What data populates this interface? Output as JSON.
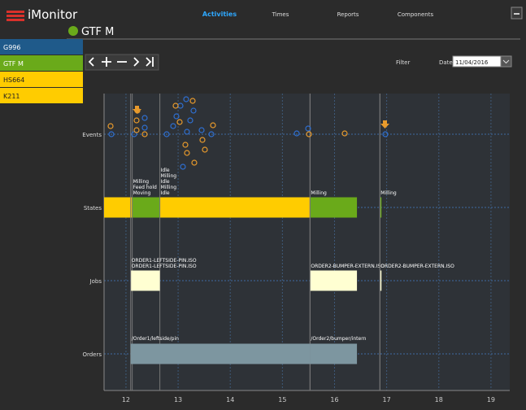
{
  "app": {
    "title": "iMonitor",
    "tabs": [
      "Activities",
      "Times",
      "Reports",
      "Components"
    ],
    "active_tab": 0
  },
  "machines": [
    {
      "name": "G996",
      "color": "#1f5a8a"
    },
    {
      "name": "GTF M",
      "color": "#6aaa1a"
    },
    {
      "name": "HS664",
      "color": "#ffcc00"
    },
    {
      "name": "K211",
      "color": "#ffcc00"
    }
  ],
  "header": {
    "title": "GTF M",
    "color": "#6aaa1a"
  },
  "toolbar": {
    "filter": "Filter",
    "date_label": "Date",
    "date": "11/04/2016"
  },
  "timeline": {
    "rows": [
      "Events",
      "States",
      "Jobs",
      "Orders"
    ],
    "xlim": [
      11.58,
      19.36
    ],
    "xticks": [
      12,
      13,
      14,
      15,
      16,
      17,
      18,
      19
    ],
    "states": [
      {
        "start": 11.58,
        "end": 12.12,
        "color": "#ffcc00"
      },
      {
        "start": 12.12,
        "end": 12.65,
        "color": "#6aaa1a"
      },
      {
        "start": 12.65,
        "end": 15.53,
        "color": "#ffcc00"
      },
      {
        "start": 15.53,
        "end": 16.43,
        "color": "#6aaa1a"
      },
      {
        "start": 16.87,
        "end": 16.9,
        "color": "#6aaa1a"
      }
    ],
    "state_labels": [
      {
        "t": 12.12,
        "lines": [
          "Milling",
          "Feed hold",
          "Moving"
        ]
      },
      {
        "t": 12.65,
        "lines": [
          "Idle",
          "Milling",
          "Idle",
          "Milling",
          "Idle"
        ]
      },
      {
        "t": 15.53,
        "lines": [
          "Milling"
        ]
      },
      {
        "t": 16.87,
        "lines": [
          "Milling"
        ]
      }
    ],
    "jobs": [
      {
        "start": 12.09,
        "end": 12.65,
        "labels": [
          "ORDER1-LEFTSIDE-PIN.ISO",
          "ORDER1-LEFTSIDE-PIN.ISO"
        ]
      },
      {
        "start": 15.53,
        "end": 16.43,
        "labels": [
          "ORDER2-BUMPER-EXTERN.ISO"
        ]
      },
      {
        "start": 16.87,
        "end": 16.9,
        "labels": [
          "ORDER2-BUMPER-EXTERN.ISO"
        ]
      }
    ],
    "orders": [
      {
        "start": 12.09,
        "end": 15.53,
        "label": "/Order1/leftside/pin"
      },
      {
        "start": 15.53,
        "end": 16.43,
        "label": "/Order2/bumper/intern"
      }
    ],
    "job_color": "#ffffd2",
    "order_color": "#7d96a0"
  }
}
